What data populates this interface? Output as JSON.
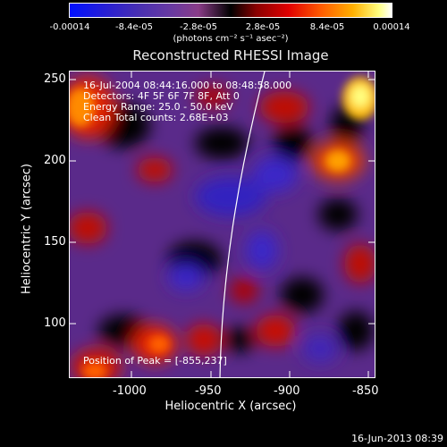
{
  "colorbar": {
    "ticks": [
      "-0.00014",
      "-8.4e-05",
      "-2.8e-05",
      "2.8e-05",
      "8.4e-05",
      "0.00014"
    ],
    "units": "(photons cm⁻² s⁻¹ asec⁻²)"
  },
  "plot": {
    "title": "Reconstructed RHESSI Image",
    "xlabel": "Heliocentric X (arcsec)",
    "ylabel": "Heliocentric Y (arcsec)",
    "xticks": [
      "-1000",
      "-950",
      "-900",
      "-850"
    ],
    "yticks": [
      "250",
      "200",
      "150",
      "100"
    ],
    "info": {
      "time_range": "16-Jul-2004 08:44:16.000 to 08:48:58.000",
      "detectors": "Detectors: 4F 5F 6F 7F 8F, Att 0",
      "energy": "Energy Range: 25.0 - 50.0 keV",
      "clean": "Clean    Total counts: 2.68E+03",
      "peak": "Position of Peak = [-855,237]"
    }
  },
  "footer": "16-Jun-2013 08:39",
  "colors": {
    "background": "#000000",
    "low": "#3020c0",
    "mid": "#7a3aa8",
    "high": "#ff3000",
    "peak": "#ffff80"
  }
}
